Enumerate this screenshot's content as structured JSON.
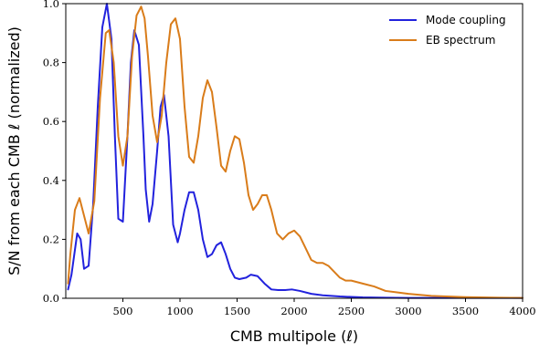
{
  "chart_data": {
    "type": "line",
    "xlabel": "CMB multipole (ℓ)",
    "ylabel": "S/N from each CMB ℓ (normalized)",
    "xlim": [
      0,
      4000
    ],
    "ylim": [
      0,
      1.0
    ],
    "xticks": [
      500,
      1000,
      1500,
      2000,
      2500,
      3000,
      3500,
      4000
    ],
    "yticks": [
      0.0,
      0.2,
      0.4,
      0.6,
      0.8,
      1.0
    ],
    "xtick_labels": [
      "500",
      "1000",
      "1500",
      "2000",
      "2500",
      "3000",
      "3500",
      "4000"
    ],
    "ytick_labels": [
      "0.0",
      "0.2",
      "0.4",
      "0.6",
      "0.8",
      "1.0"
    ],
    "legend_position": "top-right",
    "grid": false,
    "series": [
      {
        "name": "Mode coupling",
        "color": "#2222dd",
        "x": [
          20,
          50,
          100,
          130,
          160,
          200,
          240,
          280,
          320,
          360,
          400,
          430,
          460,
          500,
          540,
          570,
          600,
          640,
          680,
          700,
          730,
          760,
          800,
          830,
          860,
          900,
          940,
          980,
          1000,
          1040,
          1080,
          1120,
          1160,
          1200,
          1240,
          1280,
          1320,
          1360,
          1400,
          1440,
          1480,
          1520,
          1580,
          1620,
          1680,
          1740,
          1800,
          1860,
          1920,
          1980,
          2050,
          2150,
          2250,
          2400,
          2600,
          2800,
          3000,
          3500,
          4000
        ],
        "y": [
          0.03,
          0.08,
          0.22,
          0.2,
          0.1,
          0.11,
          0.32,
          0.65,
          0.92,
          1.0,
          0.88,
          0.55,
          0.27,
          0.26,
          0.55,
          0.8,
          0.91,
          0.86,
          0.55,
          0.37,
          0.26,
          0.32,
          0.5,
          0.65,
          0.69,
          0.55,
          0.25,
          0.19,
          0.22,
          0.3,
          0.36,
          0.36,
          0.3,
          0.2,
          0.14,
          0.15,
          0.18,
          0.19,
          0.15,
          0.1,
          0.07,
          0.065,
          0.07,
          0.08,
          0.075,
          0.05,
          0.03,
          0.028,
          0.028,
          0.03,
          0.025,
          0.015,
          0.01,
          0.006,
          0.003,
          0.002,
          0.001,
          0.001,
          0.001
        ]
      },
      {
        "name": "EB spectrum",
        "color": "#d97c1a",
        "x": [
          20,
          40,
          80,
          120,
          160,
          200,
          250,
          300,
          350,
          380,
          420,
          460,
          500,
          540,
          580,
          620,
          660,
          690,
          720,
          760,
          800,
          840,
          880,
          920,
          960,
          1000,
          1040,
          1080,
          1120,
          1160,
          1200,
          1240,
          1280,
          1320,
          1360,
          1400,
          1440,
          1480,
          1520,
          1560,
          1600,
          1640,
          1680,
          1720,
          1760,
          1800,
          1850,
          1900,
          1950,
          2000,
          2050,
          2100,
          2150,
          2200,
          2250,
          2300,
          2350,
          2400,
          2450,
          2500,
          2600,
          2700,
          2800,
          2900,
          3000,
          3200,
          3500,
          3800,
          4000
        ],
        "y": [
          0.05,
          0.15,
          0.3,
          0.34,
          0.28,
          0.22,
          0.33,
          0.68,
          0.9,
          0.91,
          0.8,
          0.55,
          0.45,
          0.55,
          0.82,
          0.96,
          0.99,
          0.95,
          0.82,
          0.62,
          0.53,
          0.62,
          0.8,
          0.93,
          0.95,
          0.88,
          0.65,
          0.48,
          0.46,
          0.55,
          0.68,
          0.74,
          0.7,
          0.58,
          0.45,
          0.43,
          0.5,
          0.55,
          0.54,
          0.46,
          0.35,
          0.3,
          0.32,
          0.35,
          0.35,
          0.3,
          0.22,
          0.2,
          0.22,
          0.23,
          0.21,
          0.17,
          0.13,
          0.12,
          0.12,
          0.11,
          0.09,
          0.07,
          0.06,
          0.06,
          0.05,
          0.04,
          0.025,
          0.02,
          0.015,
          0.008,
          0.004,
          0.002,
          0.001
        ]
      }
    ]
  }
}
